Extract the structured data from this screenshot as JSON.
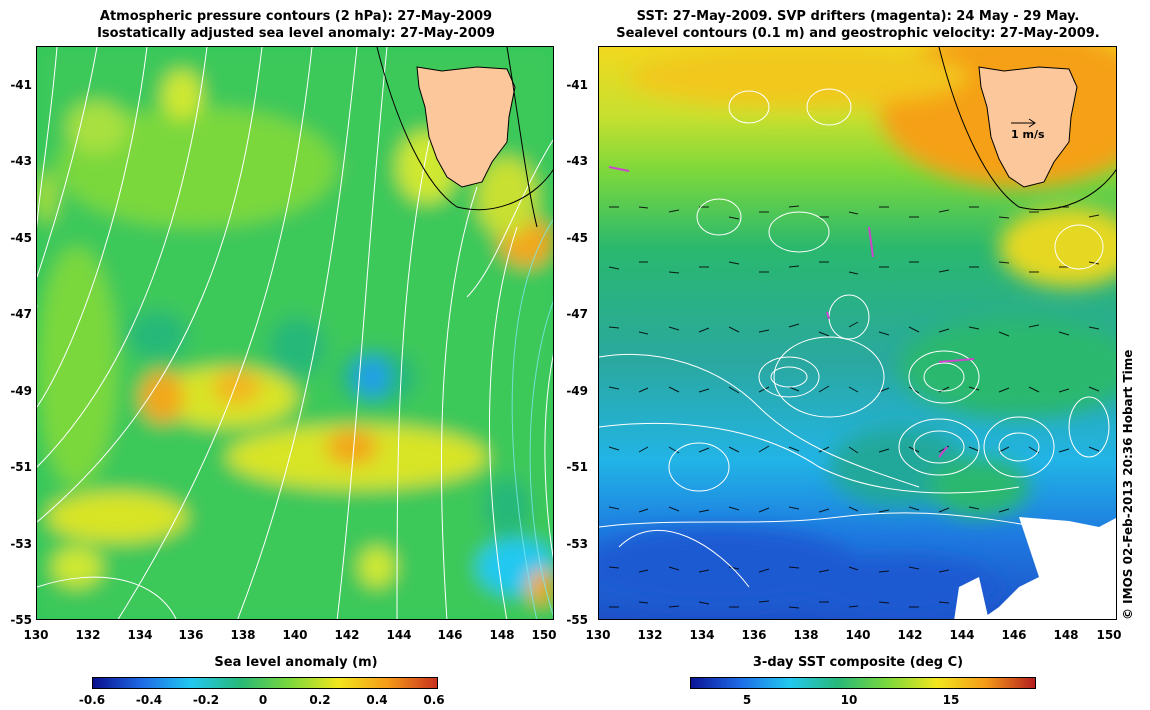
{
  "left_panel": {
    "title_line1": "Atmospheric pressure contours (2 hPa): 27-May-2009",
    "title_line2": "Isostatically adjusted sea level anomaly: 27-May-2009",
    "colorbar_title": "Sea level anomaly (m)",
    "colorbar_ticks": [
      "-0.6",
      "-0.4",
      "-0.2",
      "0",
      "0.2",
      "0.4",
      "0.6"
    ],
    "colormap": [
      "#0a0f8c",
      "#1e6be6",
      "#22c8f0",
      "#28b878",
      "#7ad83c",
      "#f2e61e",
      "#f59a18",
      "#c8321e"
    ]
  },
  "right_panel": {
    "title_line1": "SST: 27-May-2009. SVP drifters (magenta): 24 May - 29 May.",
    "title_line2": "Sealevel contours (0.1 m) and geostrophic velocity: 27-May-2009.",
    "velocity_scale_label": "1 m/s",
    "colorbar_title": "3-day SST composite (deg C)",
    "colorbar_ticks": [
      "5",
      "10",
      "15"
    ],
    "colormap": [
      "#0a1496",
      "#1e6be6",
      "#22c8f0",
      "#28b878",
      "#7ad83c",
      "#f2e61e",
      "#f59a18",
      "#b41e1e"
    ]
  },
  "axes": {
    "y_ticks": [
      "-41",
      "-43",
      "-45",
      "-47",
      "-49",
      "-51",
      "-53",
      "-55"
    ],
    "x_ticks": [
      "130",
      "132",
      "134",
      "136",
      "138",
      "140",
      "142",
      "144",
      "146",
      "148",
      "150"
    ],
    "lon_range": [
      130,
      150
    ],
    "lat_range": [
      -55,
      -40
    ]
  },
  "credit": "© IMOS 02-Feb-2013 20:36 Hobart Time",
  "colors": {
    "land": "#fcc79a",
    "contour_line": "#ffffff",
    "coastline": "#000000",
    "drifter": "#cc44cc"
  }
}
